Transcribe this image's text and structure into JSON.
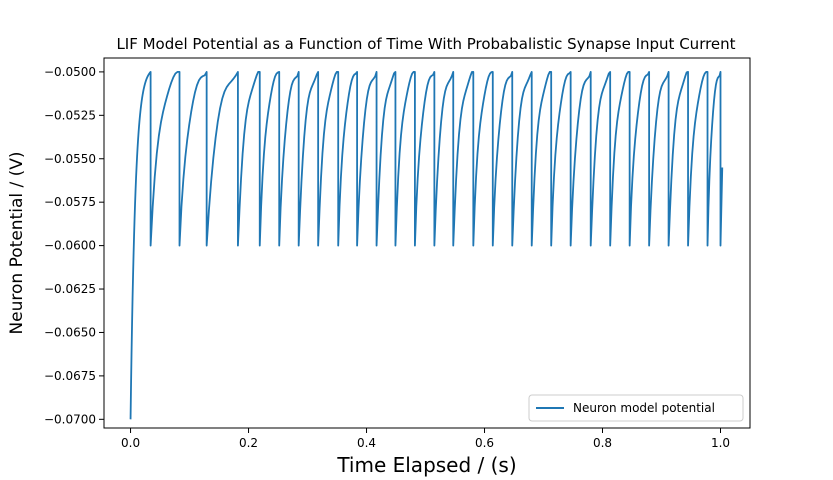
{
  "chart_data": {
    "type": "line",
    "title": "LIF Model Potential as a Function of Time With Probabalistic Synapse Input Current",
    "xlabel": "Time Elapsed / (s)",
    "ylabel": "Neuron Potential / (V)",
    "xlim": [
      -0.045,
      1.05
    ],
    "ylim": [
      -0.0705,
      -0.0492
    ],
    "x_ticks": [
      0.0,
      0.2,
      0.4,
      0.6,
      0.8,
      1.0
    ],
    "x_tick_labels": [
      "0.0",
      "0.2",
      "0.4",
      "0.6",
      "0.8",
      "1.0"
    ],
    "y_ticks": [
      -0.07,
      -0.0675,
      -0.065,
      -0.0625,
      -0.06,
      -0.0575,
      -0.055,
      -0.0525,
      -0.05
    ],
    "y_tick_labels": [
      "−0.0700",
      "−0.0675",
      "−0.0650",
      "−0.0625",
      "−0.0600",
      "−0.0575",
      "−0.0550",
      "−0.0525",
      "−0.0500"
    ],
    "legend_position": "lower-right",
    "series": [
      {
        "name": "Neuron model potential",
        "color": "#1f77b4",
        "v_rest": -0.07,
        "v_reset": -0.06,
        "v_threshold": -0.05,
        "end_value": -0.0555,
        "spike_times": [
          0.034,
          0.083,
          0.129,
          0.182,
          0.219,
          0.252,
          0.285,
          0.318,
          0.352,
          0.384,
          0.417,
          0.449,
          0.482,
          0.515,
          0.547,
          0.581,
          0.614,
          0.647,
          0.68,
          0.713,
          0.746,
          0.78,
          0.813,
          0.846,
          0.879,
          0.912,
          0.945,
          0.978,
          1.0
        ]
      }
    ]
  }
}
